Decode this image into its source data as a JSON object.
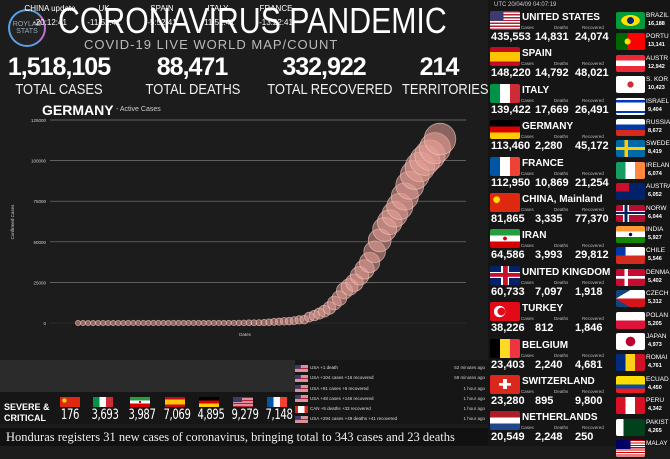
{
  "header": {
    "logo_text": [
      "ROYLAB",
      "STATS"
    ],
    "title": "CORONAVIRUS PANDEMIC",
    "subtitle": "COVID-19 LIVE WORLD MAP/COUNT"
  },
  "stats": [
    {
      "value": "1,518,105",
      "label": "TOTAL CASES"
    },
    {
      "value": "88,471",
      "label": "TOTAL DEATHS"
    },
    {
      "value": "332,922",
      "label": "TOTAL RECOVERED"
    },
    {
      "value": "214",
      "label": "TERRITORIES"
    }
  ],
  "chart_data": {
    "type": "scatter",
    "title": "GERMANY",
    "subtitle": "- Active Cases",
    "xlabel": "Dates",
    "ylabel": "Confirmed Cases",
    "ylim": [
      0,
      125000
    ],
    "yticks": [
      "0",
      "25000",
      "50000",
      "75000",
      "100000",
      "125000"
    ],
    "grid": true,
    "marker": "bubble",
    "color": "#e8a098",
    "values": [
      4,
      4,
      5,
      5,
      8,
      10,
      12,
      12,
      12,
      12,
      13,
      13,
      14,
      14,
      16,
      16,
      16,
      16,
      16,
      16,
      16,
      16,
      16,
      16,
      16,
      16,
      16,
      16,
      16,
      16,
      18,
      26,
      48,
      79,
      130,
      159,
      196,
      262,
      482,
      670,
      799,
      1040,
      1176,
      1457,
      1908,
      2078,
      3675,
      4585,
      5795,
      7272,
      9257,
      12327,
      15320,
      19848,
      22213,
      24873,
      29056,
      32986,
      37323,
      43938,
      50871,
      57695,
      62095,
      66885,
      71808,
      77872,
      84794,
      91159,
      96092,
      100123,
      103374,
      107663,
      113296
    ]
  },
  "timezones": [
    {
      "name": "CHINA update",
      "time": "-20:12:41"
    },
    {
      "name": "UK",
      "time": "-11:52:41"
    },
    {
      "name": "SPAIN",
      "time": "-5:52:41"
    },
    {
      "name": "ITALY",
      "time": "-11:52:41"
    },
    {
      "name": "FRANCE",
      "time": "-13:22:41"
    }
  ],
  "severe": {
    "label": "SEVERE & CRITICAL",
    "items": [
      {
        "flag": "cn",
        "value": "176"
      },
      {
        "flag": "it",
        "value": "3,693"
      },
      {
        "flag": "ir",
        "value": "3,987"
      },
      {
        "flag": "es",
        "value": "7,069"
      },
      {
        "flag": "de",
        "value": "4,895"
      },
      {
        "flag": "us",
        "value": "9,279"
      },
      {
        "flag": "fr",
        "value": "7,148"
      }
    ]
  },
  "log": [
    {
      "flag": "us",
      "text": "USA +1 death",
      "ago": "52 minutes ago"
    },
    {
      "flag": "us",
      "text": "USA +104 cases +16 recovered",
      "ago": "59 minutes ago"
    },
    {
      "flag": "us",
      "text": "USA +91 cases +6 recovered",
      "ago": "1 hour ago"
    },
    {
      "flag": "us",
      "text": "USA +48 cases +146 recovered",
      "ago": "1 hour ago"
    },
    {
      "flag": "ca",
      "text": "CAN +5 deaths +33 recovered",
      "ago": "1 hour ago"
    },
    {
      "flag": "us",
      "text": "USA +294 cases +49 deaths +41 recovered",
      "ago": "1 hour ago"
    }
  ],
  "ticker": "Honduras registers 31 new cases of coronavirus, bringing total to 343 cases and 23 deaths",
  "panel": {
    "utc": "UTC 20/04/09 04:07:19",
    "labels": {
      "cases": "Cases",
      "deaths": "Deaths",
      "recovered": "Recovered"
    },
    "main": [
      {
        "flag": "us",
        "name": "UNITED STATES",
        "cases": "435,553",
        "deaths": "14,831",
        "recovered": "24,074"
      },
      {
        "flag": "es",
        "name": "SPAIN",
        "cases": "148,220",
        "deaths": "14,792",
        "recovered": "48,021"
      },
      {
        "flag": "it",
        "name": "ITALY",
        "cases": "139,422",
        "deaths": "17,669",
        "recovered": "26,491"
      },
      {
        "flag": "de",
        "name": "GERMANY",
        "cases": "113,460",
        "deaths": "2,280",
        "recovered": "45,172"
      },
      {
        "flag": "fr",
        "name": "FRANCE",
        "cases": "112,950",
        "deaths": "10,869",
        "recovered": "21,254"
      },
      {
        "flag": "cn",
        "name": "CHINA, Mainland",
        "cases": "81,865",
        "deaths": "3,335",
        "recovered": "77,370"
      },
      {
        "flag": "ir",
        "name": "IRAN",
        "cases": "64,586",
        "deaths": "3,993",
        "recovered": "29,812"
      },
      {
        "flag": "gb",
        "name": "UNITED KINGDOM",
        "cases": "60,733",
        "deaths": "7,097",
        "recovered": "1,918"
      },
      {
        "flag": "tr",
        "name": "TURKEY",
        "cases": "38,226",
        "deaths": "812",
        "recovered": "1,846"
      },
      {
        "flag": "be",
        "name": "BELGIUM",
        "cases": "23,403",
        "deaths": "2,240",
        "recovered": "4,681"
      },
      {
        "flag": "ch",
        "name": "SWITZERLAND",
        "cases": "23,280",
        "deaths": "895",
        "recovered": "9,800"
      },
      {
        "flag": "nl",
        "name": "NETHERLANDS",
        "cases": "20,549",
        "deaths": "2,248",
        "recovered": "250"
      }
    ],
    "side": [
      {
        "flag": "br",
        "name": "BRAZIL",
        "cases": "16,188"
      },
      {
        "flag": "pt",
        "name": "PORTU",
        "cases": "13,141"
      },
      {
        "flag": "at",
        "name": "AUSTR",
        "cases": "12,942"
      },
      {
        "flag": "kr",
        "name": "S. KOR",
        "cases": "10,423"
      },
      {
        "flag": "il",
        "name": "ISRAEL",
        "cases": "9,404"
      },
      {
        "flag": "ru",
        "name": "RUSSIA",
        "cases": "8,672"
      },
      {
        "flag": "se",
        "name": "SWEDE",
        "cases": "8,419"
      },
      {
        "flag": "ie",
        "name": "IRELAN",
        "cases": "6,074"
      },
      {
        "flag": "au",
        "name": "AUSTRA",
        "cases": "6,052"
      },
      {
        "flag": "no",
        "name": "NORW",
        "cases": "6,044"
      },
      {
        "flag": "in",
        "name": "INDIA",
        "cases": "5,927"
      },
      {
        "flag": "cl",
        "name": "CHILE",
        "cases": "5,546"
      },
      {
        "flag": "dk",
        "name": "DENMA",
        "cases": "5,402"
      },
      {
        "flag": "cz",
        "name": "CZECH",
        "cases": "5,312"
      },
      {
        "flag": "pl",
        "name": "POLAN",
        "cases": "5,205"
      },
      {
        "flag": "jp",
        "name": "JAPAN",
        "cases": "4,973"
      },
      {
        "flag": "ro",
        "name": "ROMAI",
        "cases": "4,761"
      },
      {
        "flag": "ec",
        "name": "ECUAD",
        "cases": "4,450"
      },
      {
        "flag": "pe",
        "name": "PERU",
        "cases": "4,342"
      },
      {
        "flag": "pk",
        "name": "PAKIST",
        "cases": "4,265"
      },
      {
        "flag": "my",
        "name": "MALAY",
        "cases": ""
      }
    ]
  }
}
